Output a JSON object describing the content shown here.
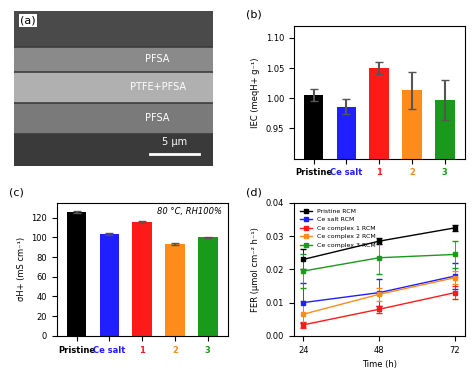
{
  "chart_data": [
    {
      "type": "image",
      "panel": "(a)",
      "annotations": [
        "PFSA",
        "PTFE+PFSA",
        "PFSA"
      ],
      "scale_bar": "5 μm"
    },
    {
      "type": "bar",
      "panel": "(b)",
      "y_label": "IEC (meqH+ g⁻¹)",
      "categories": [
        "Pristine",
        "Ce salt",
        "1",
        "2",
        "3"
      ],
      "values": [
        1.006,
        0.986,
        1.05,
        1.013,
        0.997
      ],
      "errors": [
        0.01,
        0.012,
        0.01,
        0.03,
        0.033
      ],
      "colors": [
        "#000000",
        "#1f1fff",
        "#ff1a1a",
        "#ff8c1a",
        "#1a9a1a"
      ],
      "ylim": [
        0.9,
        1.12
      ],
      "yticks": [
        0.95,
        {
          "value": 1.0,
          "label": "1.00"
        },
        1.05,
        {
          "value": 1.1,
          "label": "1.10"
        }
      ]
    },
    {
      "type": "bar",
      "panel": "(c)",
      "y_label": "σH+ (mS cm⁻¹)",
      "annotation": "80 °C, RH100%",
      "categories": [
        "Pristine",
        "Ce salt",
        "1",
        "2",
        "3"
      ],
      "values": [
        126,
        103,
        116,
        93,
        100
      ],
      "errors": [
        1,
        1,
        1,
        1,
        0.5
      ],
      "colors": [
        "#000000",
        "#1f1fff",
        "#ff1a1a",
        "#ff8c1a",
        "#1a9a1a"
      ],
      "ylim": [
        0,
        135
      ],
      "yticks": [
        0,
        20,
        40,
        60,
        80,
        100,
        120
      ]
    },
    {
      "type": "line",
      "panel": "(d)",
      "x_label": "Time (h)",
      "y_label": "FER (μmol cm⁻² h⁻¹)",
      "x": [
        24,
        48,
        72
      ],
      "xlim": [
        21,
        75
      ],
      "xticks": [
        24,
        48,
        72
      ],
      "ylim": [
        0,
        0.04
      ],
      "yticks": [
        {
          "value": 0,
          "label": "0.00"
        },
        0.01,
        0.02,
        0.03,
        {
          "value": 0.04,
          "label": "0.04"
        }
      ],
      "legend": "upper left",
      "marker": "square",
      "series": [
        {
          "name": "Pristine RCM",
          "color": "#000000",
          "values": [
            0.023,
            0.0285,
            0.0325
          ],
          "errors": [
            0.003,
            0.001,
            0.001
          ]
        },
        {
          "name": "Ce salt RCM",
          "color": "#1f1fff",
          "values": [
            0.01,
            0.013,
            0.018
          ],
          "errors": [
            0.006,
            0.004,
            0.004
          ]
        },
        {
          "name": "Ce complex 1 RCM",
          "color": "#ff1a1a",
          "values": [
            0.0033,
            0.008,
            0.013
          ],
          "errors": [
            0.001,
            0.001,
            0.002
          ]
        },
        {
          "name": "Ce complex 2 RCM",
          "color": "#ff8c1a",
          "values": [
            0.0065,
            0.0125,
            0.0175
          ],
          "errors": [
            0.004,
            0.002,
            0.002
          ]
        },
        {
          "name": "Ce complex 3 RCM",
          "color": "#1a9a1a",
          "values": [
            0.0195,
            0.0235,
            0.0245
          ],
          "errors": [
            0.005,
            0.005,
            0.004
          ]
        }
      ]
    }
  ]
}
